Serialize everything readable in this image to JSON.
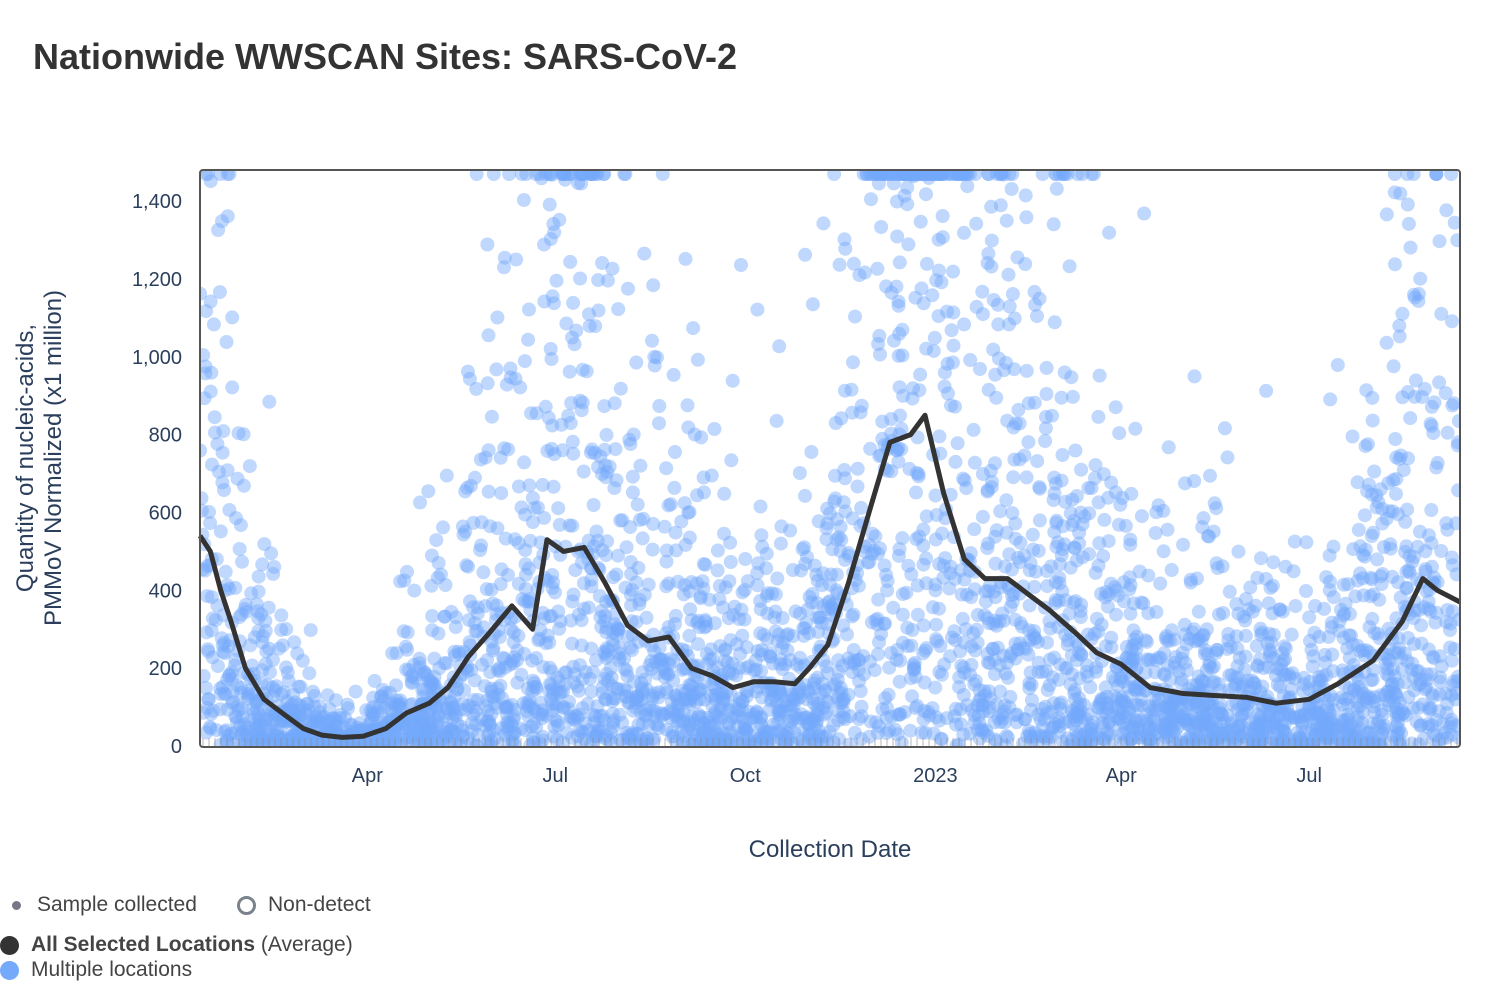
{
  "title": "Nationwide WWSCAN Sites: SARS-CoV-2",
  "legend": {
    "sample_collected": "Sample collected",
    "non_detect": "Non-detect",
    "average_bold": "All Selected Locations",
    "average_suffix": "(Average)",
    "multiple": "Multiple locations"
  },
  "colors": {
    "average": "#333333",
    "points": "#74a9fb",
    "nondetect": "#888888"
  },
  "chart_data": {
    "type": "scatter",
    "title": "Nationwide WWSCAN Sites: SARS-CoV-2",
    "xlabel": "Collection Date",
    "ylabel_line1": "Quantity of nucleic-acids,",
    "ylabel_line2": "PMMoV Normalized (x1 million)",
    "xlim": [
      "2022-01-10",
      "2023-09-12"
    ],
    "ylim": [
      0,
      1480
    ],
    "y_ticks": [
      {
        "v": 0,
        "label": "0"
      },
      {
        "v": 200,
        "label": "200"
      },
      {
        "v": 400,
        "label": "400"
      },
      {
        "v": 600,
        "label": "600"
      },
      {
        "v": 800,
        "label": "800"
      },
      {
        "v": 1000,
        "label": "1,000"
      },
      {
        "v": 1200,
        "label": "1,200"
      },
      {
        "v": 1400,
        "label": "1,400"
      }
    ],
    "x_ticks": [
      {
        "d": "2022-04-01",
        "label": "Apr"
      },
      {
        "d": "2022-07-01",
        "label": "Jul"
      },
      {
        "d": "2022-10-01",
        "label": "Oct"
      },
      {
        "d": "2023-01-01",
        "label": "2023"
      },
      {
        "d": "2023-04-01",
        "label": "Apr"
      },
      {
        "d": "2023-07-01",
        "label": "Jul"
      }
    ],
    "series": [
      {
        "name": "All Selected Locations (Average)",
        "type": "line",
        "points": [
          [
            "2022-01-10",
            540
          ],
          [
            "2022-01-15",
            500
          ],
          [
            "2022-01-20",
            400
          ],
          [
            "2022-01-25",
            320
          ],
          [
            "2022-02-01",
            200
          ],
          [
            "2022-02-10",
            120
          ],
          [
            "2022-02-20",
            80
          ],
          [
            "2022-03-01",
            45
          ],
          [
            "2022-03-10",
            28
          ],
          [
            "2022-03-20",
            22
          ],
          [
            "2022-03-30",
            25
          ],
          [
            "2022-04-10",
            45
          ],
          [
            "2022-04-20",
            85
          ],
          [
            "2022-05-01",
            110
          ],
          [
            "2022-05-10",
            150
          ],
          [
            "2022-05-20",
            230
          ],
          [
            "2022-05-30",
            290
          ],
          [
            "2022-06-10",
            360
          ],
          [
            "2022-06-20",
            300
          ],
          [
            "2022-06-27",
            530
          ],
          [
            "2022-07-05",
            500
          ],
          [
            "2022-07-15",
            510
          ],
          [
            "2022-07-25",
            420
          ],
          [
            "2022-08-05",
            310
          ],
          [
            "2022-08-15",
            270
          ],
          [
            "2022-08-25",
            280
          ],
          [
            "2022-09-05",
            200
          ],
          [
            "2022-09-15",
            180
          ],
          [
            "2022-09-25",
            150
          ],
          [
            "2022-10-05",
            165
          ],
          [
            "2022-10-15",
            165
          ],
          [
            "2022-10-25",
            160
          ],
          [
            "2022-11-01",
            200
          ],
          [
            "2022-11-10",
            260
          ],
          [
            "2022-11-20",
            420
          ],
          [
            "2022-12-01",
            620
          ],
          [
            "2022-12-10",
            780
          ],
          [
            "2022-12-20",
            800
          ],
          [
            "2022-12-27",
            850
          ],
          [
            "2023-01-05",
            650
          ],
          [
            "2023-01-15",
            480
          ],
          [
            "2023-01-25",
            430
          ],
          [
            "2023-02-05",
            430
          ],
          [
            "2023-02-15",
            390
          ],
          [
            "2023-02-25",
            350
          ],
          [
            "2023-03-10",
            290
          ],
          [
            "2023-03-20",
            240
          ],
          [
            "2023-04-01",
            210
          ],
          [
            "2023-04-15",
            150
          ],
          [
            "2023-05-01",
            135
          ],
          [
            "2023-05-15",
            130
          ],
          [
            "2023-06-01",
            125
          ],
          [
            "2023-06-15",
            110
          ],
          [
            "2023-07-01",
            120
          ],
          [
            "2023-07-15",
            160
          ],
          [
            "2023-08-01",
            220
          ],
          [
            "2023-08-15",
            320
          ],
          [
            "2023-08-25",
            430
          ],
          [
            "2023-09-01",
            400
          ],
          [
            "2023-09-12",
            370
          ]
        ]
      },
      {
        "name": "Multiple locations",
        "type": "scatter"
      }
    ],
    "legend_position": "bottom-left"
  }
}
